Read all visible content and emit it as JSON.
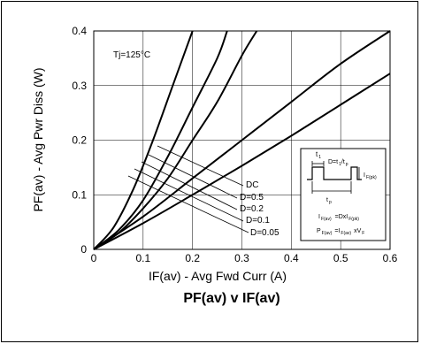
{
  "chart_data": {
    "type": "line",
    "title": "PF(av) v IF(av)",
    "xlabel": "IF(av) - Avg Fwd Curr (A)",
    "ylabel": "PF(av) - Avg Pwr Diss (W)",
    "xlim": [
      0,
      0.6
    ],
    "ylim": [
      0,
      0.4
    ],
    "x_ticks": [
      {
        "value": 0,
        "label": "0"
      },
      {
        "value": 0.1,
        "label": "0.1"
      },
      {
        "value": 0.2,
        "label": "0.2"
      },
      {
        "value": 0.3,
        "label": "0.3"
      },
      {
        "value": 0.4,
        "label": "0.4"
      },
      {
        "value": 0.5,
        "label": "0.5"
      },
      {
        "value": 0.6,
        "label": "0.6"
      }
    ],
    "y_ticks": [
      {
        "value": 0,
        "label": "0"
      },
      {
        "value": 0.1,
        "label": "0.1"
      },
      {
        "value": 0.2,
        "label": "0.2"
      },
      {
        "value": 0.3,
        "label": "0.3"
      },
      {
        "value": 0.4,
        "label": "0.4"
      }
    ],
    "grid": true,
    "annotation_condition": "Tj=125°C",
    "series": [
      {
        "name": "D=0.05",
        "x": [
          0,
          0.04,
          0.08,
          0.12,
          0.16,
          0.2
        ],
        "y": [
          0,
          0.04,
          0.11,
          0.2,
          0.3,
          0.4
        ]
      },
      {
        "name": "D=0.1",
        "x": [
          0,
          0.05,
          0.1,
          0.15,
          0.2,
          0.25,
          0.27
        ],
        "y": [
          0,
          0.035,
          0.09,
          0.17,
          0.26,
          0.35,
          0.4
        ]
      },
      {
        "name": "D=0.2",
        "x": [
          0,
          0.05,
          0.1,
          0.15,
          0.2,
          0.25,
          0.3,
          0.33
        ],
        "y": [
          0,
          0.03,
          0.075,
          0.13,
          0.2,
          0.27,
          0.355,
          0.4
        ]
      },
      {
        "name": "D=0.5",
        "x": [
          0,
          0.1,
          0.2,
          0.3,
          0.4,
          0.5,
          0.6
        ],
        "y": [
          0,
          0.06,
          0.13,
          0.2,
          0.27,
          0.34,
          0.4
        ]
      },
      {
        "name": "DC",
        "x": [
          0,
          0.1,
          0.2,
          0.3,
          0.4,
          0.5,
          0.6
        ],
        "y": [
          0,
          0.048,
          0.1,
          0.153,
          0.208,
          0.265,
          0.322
        ]
      }
    ],
    "legend_placement": "inline labels near lower-right of curves",
    "curve_labels": [
      {
        "text": "DC"
      },
      {
        "text": "D=0.5"
      },
      {
        "text": "D=0.2"
      },
      {
        "text": "D=0.1"
      },
      {
        "text": "D=0.05"
      }
    ],
    "inset": {
      "t1": "t",
      "t1_sub": "1",
      "duty": "D=t",
      "duty_sub1": "1",
      "duty_slash": "/t",
      "duty_sub2": "p",
      "ifpk": "I",
      "ifpk_sub": "F(pk)",
      "tp": "t",
      "tp_sub": "p",
      "eq1_lhs": "I",
      "eq1_lhs_sub": "F(av)",
      "eq1_rhs": "=DxI",
      "eq1_rhs_sub": "F(pk)",
      "eq2_lhs": "P",
      "eq2_lhs_sub": "F(av)",
      "eq2_mid": "=I",
      "eq2_mid_sub": "F(av)",
      "eq2_rhs": "xV",
      "eq2_rhs_sub": "F"
    }
  }
}
